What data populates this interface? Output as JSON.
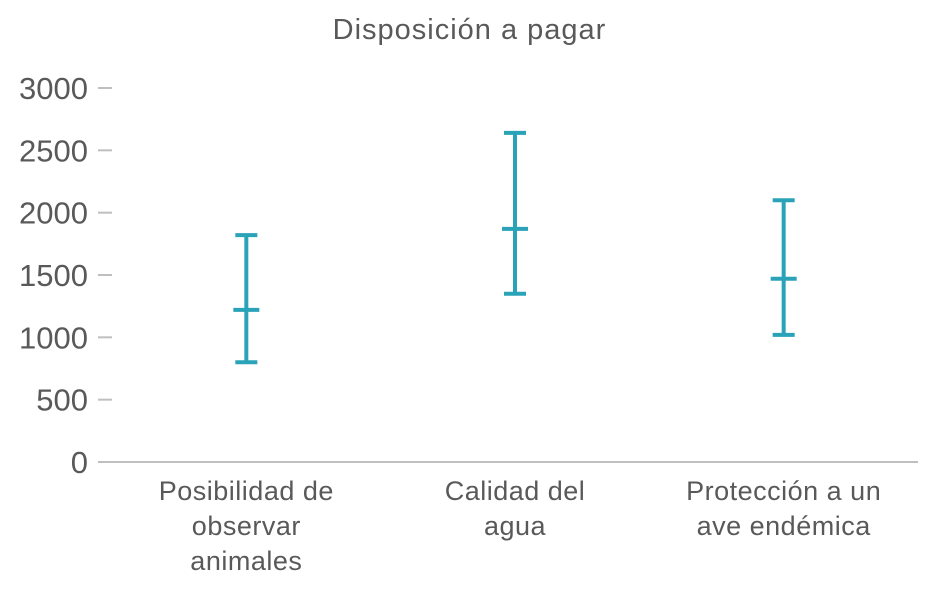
{
  "chart_data": {
    "type": "errorbar",
    "title": "Disposición a pagar",
    "categories": [
      "Posibilidad de observar animales",
      "Calidad del agua",
      "Protección a un ave endémica"
    ],
    "category_label_lines": [
      [
        "Posibilidad de",
        "observar",
        "animales"
      ],
      [
        "Calidad del",
        "agua"
      ],
      [
        "Protección a un",
        "ave endémica"
      ]
    ],
    "series": [
      {
        "name": "Disposición a pagar",
        "center": [
          1220,
          1870,
          1470
        ],
        "low": [
          800,
          1350,
          1020
        ],
        "high": [
          1820,
          2640,
          2100
        ]
      }
    ],
    "xlabel": "",
    "ylabel": "",
    "ylim": [
      0,
      3000
    ],
    "yticks": [
      0,
      500,
      1000,
      1500,
      2000,
      2500,
      3000
    ],
    "grid": false,
    "legend": false,
    "colors": {
      "errorbar": "#2AA3B8",
      "text": "#595959",
      "axis": "#BFBFBF"
    }
  }
}
